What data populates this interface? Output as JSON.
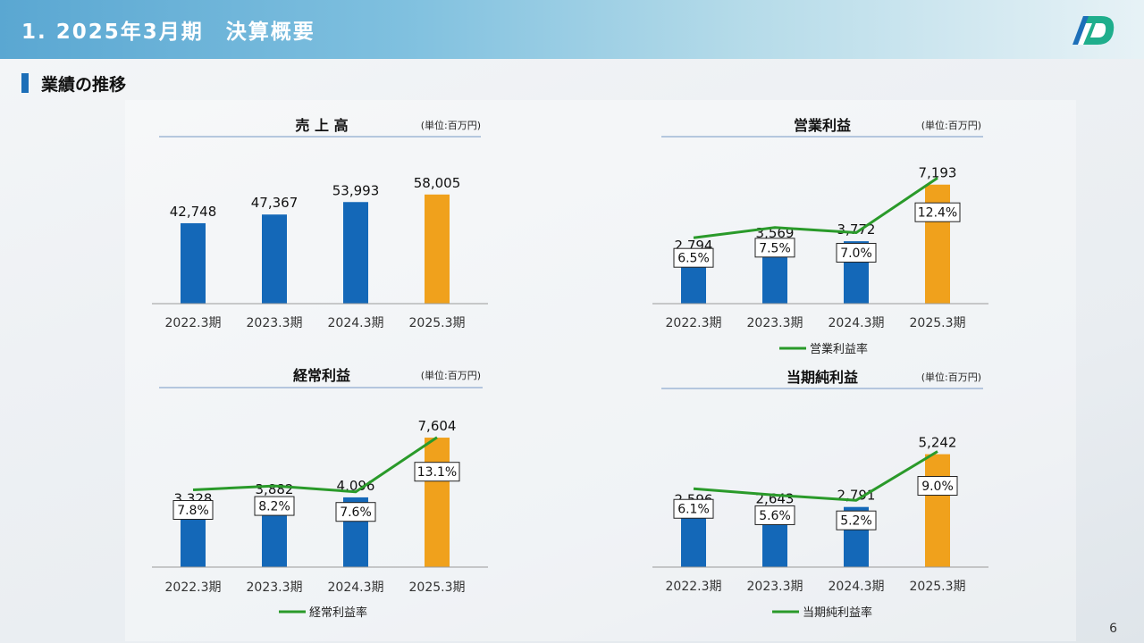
{
  "header": {
    "title": "1. 2025年3月期　決算概要"
  },
  "section": {
    "title": "業績の推移"
  },
  "page_number": "6",
  "colors": {
    "past_bar": "#1468b8",
    "current_bar": "#f0a11c",
    "ratio_line": "#2a9a2a",
    "axis": "#9a9a9a",
    "title_rule": "#9fb7d6"
  },
  "chart_data": [
    {
      "id": "sales",
      "type": "bar",
      "title": "売 上 高",
      "unit": "(単位:百万円)",
      "categories": [
        "2022.3期",
        "2023.3期",
        "2024.3期",
        "2025.3期"
      ],
      "values": [
        42748,
        47367,
        53993,
        58005
      ],
      "value_labels": [
        "42,748",
        "47,367",
        "53,993",
        "58,005"
      ],
      "highlight_index": 3,
      "ylim": [
        0,
        75000
      ]
    },
    {
      "id": "operating_profit",
      "type": "bar",
      "title": "営業利益",
      "unit": "(単位:百万円)",
      "categories": [
        "2022.3期",
        "2023.3期",
        "2024.3期",
        "2025.3期"
      ],
      "values": [
        2794,
        3569,
        3772,
        7193
      ],
      "value_labels": [
        "2,794",
        "3,569",
        "3,772",
        "7,193"
      ],
      "highlight_index": 3,
      "ylim": [
        0,
        9500
      ],
      "ratio": {
        "name": "営業利益率",
        "values": [
          6.5,
          7.5,
          7.0,
          12.4
        ],
        "labels": [
          "6.5%",
          "7.5%",
          "7.0%",
          "12.4%"
        ],
        "ylim": [
          0,
          15.5
        ]
      }
    },
    {
      "id": "ordinary_profit",
      "type": "bar",
      "title": "経常利益",
      "unit": "(単位:百万円)",
      "categories": [
        "2022.3期",
        "2023.3期",
        "2024.3期",
        "2025.3期"
      ],
      "values": [
        3328,
        3882,
        4096,
        7604
      ],
      "value_labels": [
        "3,328",
        "3,882",
        "4,096",
        "7,604"
      ],
      "highlight_index": 3,
      "ylim": [
        0,
        9600
      ],
      "ratio": {
        "name": "経常利益率",
        "values": [
          7.8,
          8.2,
          7.6,
          13.1
        ],
        "labels": [
          "7.8%",
          "8.2%",
          "7.6%",
          "13.1%"
        ],
        "ylim": [
          0,
          16.5
        ]
      }
    },
    {
      "id": "net_income",
      "type": "bar",
      "title": "当期純利益",
      "unit": "(単位:百万円)",
      "categories": [
        "2022.3期",
        "2023.3期",
        "2024.3期",
        "2025.3期"
      ],
      "values": [
        2596,
        2643,
        2791,
        5242
      ],
      "value_labels": [
        "2,596",
        "2,643",
        "2,791",
        "5,242"
      ],
      "highlight_index": 3,
      "ylim": [
        0,
        6800
      ],
      "ratio": {
        "name": "当期純利益率",
        "values": [
          6.1,
          5.6,
          5.2,
          9.0
        ],
        "labels": [
          "6.1%",
          "5.6%",
          "5.2%",
          "9.0%"
        ],
        "ylim": [
          0,
          11.4
        ]
      }
    }
  ]
}
